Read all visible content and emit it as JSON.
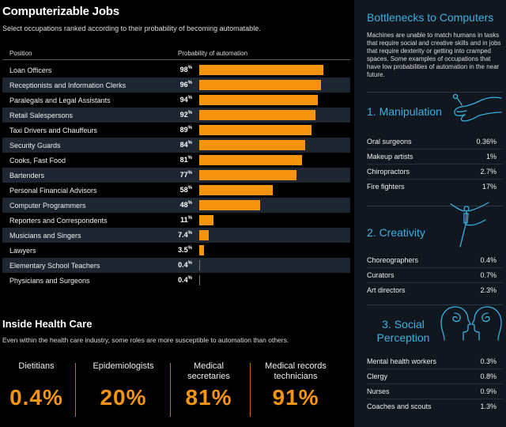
{
  "title": "Computerizable Jobs",
  "subtitle": "Select occupations ranked according to their probability of becoming automatable.",
  "headers": {
    "position": "Position",
    "probability": "Probability of automation"
  },
  "chart_data": {
    "type": "bar",
    "orientation": "horizontal",
    "title": "Computerizable Jobs",
    "xlim": [
      0,
      100
    ],
    "unit": "%",
    "categories": [
      "Loan Officers",
      "Receptionists and Information Clerks",
      "Paralegals and Legal Assistants",
      "Retail Salespersons",
      "Taxi Drivers and Chauffeurs",
      "Security Guards",
      "Cooks, Fast Food",
      "Bartenders",
      "Personal Financial Advisors",
      "Computer Programmers",
      "Reporters and Correspondents",
      "Musicians and Singers",
      "Lawyers",
      "Elementary School Teachers",
      "Physicians and Surgeons"
    ],
    "values": [
      98,
      96,
      94,
      92,
      89,
      84,
      81,
      77,
      58,
      48,
      11,
      7.4,
      3.5,
      0.4,
      0.4
    ],
    "value_labels": [
      "98",
      "96",
      "94",
      "92",
      "89",
      "84",
      "81",
      "77",
      "58",
      "48",
      "11",
      "7.4",
      "3.5",
      "0.4",
      "0.4"
    ],
    "bar_color": "#f5940f"
  },
  "health_care": {
    "title": "Inside Health Care",
    "subtitle": "Even within the health care industry, some roles are more susceptible to automation than others.",
    "items": [
      {
        "name": "Dietitians",
        "value": "0.4%"
      },
      {
        "name": "Epidemiologists",
        "value": "20%"
      },
      {
        "name": "Medical secretaries",
        "value": "81%"
      },
      {
        "name": "Medical records technicians",
        "value": "91%"
      }
    ]
  },
  "sidebar": {
    "title": "Bottlenecks to Computers",
    "description": "Machines are unable to match humans in tasks that require social and creative skills and in jobs that require dexterity or getting into cramped spaces. Some examples of occupations that have low probabilities of automation in the near future.",
    "accent": "#3bb0e3",
    "sections": [
      {
        "title": "1. Manipulation",
        "icon": "hand-icon",
        "items": [
          {
            "name": "Oral surgeons",
            "value": "0.36%"
          },
          {
            "name": "Makeup artists",
            "value": "1%"
          },
          {
            "name": "Chiropractors",
            "value": "2.7%"
          },
          {
            "name": "Fire fighters",
            "value": "17%"
          }
        ]
      },
      {
        "title": "2. Creativity",
        "icon": "dancer-icon",
        "items": [
          {
            "name": "Choreographers",
            "value": "0.4%"
          },
          {
            "name": "Curators",
            "value": "0.7%"
          },
          {
            "name": "Art directors",
            "value": "2.3%"
          }
        ]
      },
      {
        "title": "3. Social Perception",
        "icon": "heads-icon",
        "items": [
          {
            "name": "Mental health workers",
            "value": "0.3%"
          },
          {
            "name": "Clergy",
            "value": "0.8%"
          },
          {
            "name": "Nurses",
            "value": "0.9%"
          },
          {
            "name": "Coaches and scouts",
            "value": "1.3%"
          }
        ]
      }
    ]
  }
}
